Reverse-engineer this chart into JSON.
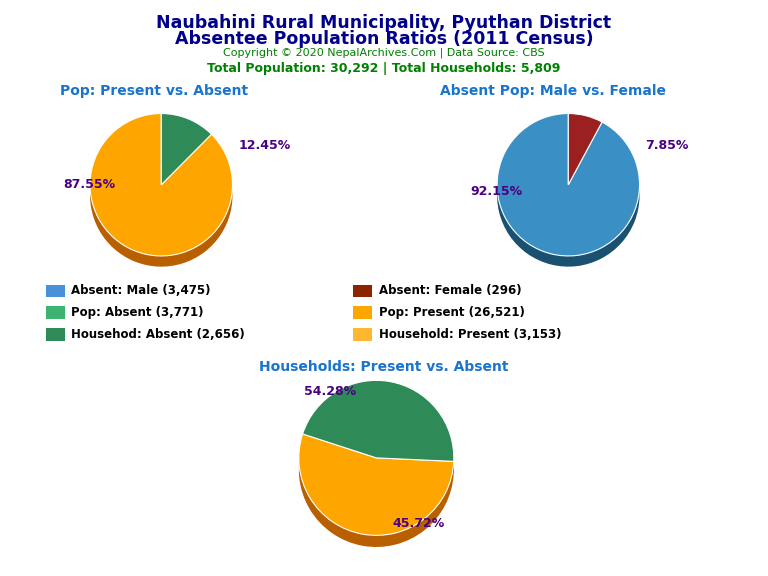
{
  "title_line1": "Naubahini Rural Municipality, Pyuthan District",
  "title_line2": "Absentee Population Ratios (2011 Census)",
  "copyright": "Copyright © 2020 NepalArchives.Com | Data Source: CBS",
  "stats": "Total Population: 30,292 | Total Households: 5,809",
  "pie1_title": "Pop: Present vs. Absent",
  "pie1_values": [
    87.55,
    12.45
  ],
  "pie1_colors": [
    "#FFA500",
    "#2E8B57"
  ],
  "pie1_shadow_colors": [
    "#B86000",
    "#1A5C33"
  ],
  "pie1_labels": [
    "87.55%",
    "12.45%"
  ],
  "pie1_startangle": 90,
  "pie2_title": "Absent Pop: Male vs. Female",
  "pie2_values": [
    92.15,
    7.85
  ],
  "pie2_colors": [
    "#3A8FC4",
    "#9B2020"
  ],
  "pie2_shadow_colors": [
    "#1A5070",
    "#5A0F0F"
  ],
  "pie2_labels": [
    "92.15%",
    "7.85%"
  ],
  "pie2_startangle": 90,
  "pie3_title": "Households: Present vs. Absent",
  "pie3_values": [
    54.28,
    45.72
  ],
  "pie3_colors": [
    "#FFA500",
    "#2E8B57"
  ],
  "pie3_shadow_colors": [
    "#B86000",
    "#1A5C33"
  ],
  "pie3_labels": [
    "54.28%",
    "45.72%"
  ],
  "pie3_startangle": 162,
  "legend_items": [
    {
      "label": "Absent: Male (3,475)",
      "color": "#4A90D9"
    },
    {
      "label": "Absent: Female (296)",
      "color": "#8B2500"
    },
    {
      "label": "Pop: Absent (3,771)",
      "color": "#3CB371"
    },
    {
      "label": "Pop: Present (26,521)",
      "color": "#FFA500"
    },
    {
      "label": "Househod: Absent (2,656)",
      "color": "#2E8B57"
    },
    {
      "label": "Household: Present (3,153)",
      "color": "#FFB732"
    }
  ],
  "title_color": "#00008B",
  "copyright_color": "#008000",
  "stats_color": "#008000",
  "subtitle_color": "#1874CD",
  "pct_color": "#4B0082",
  "background_color": "#FFFFFF"
}
